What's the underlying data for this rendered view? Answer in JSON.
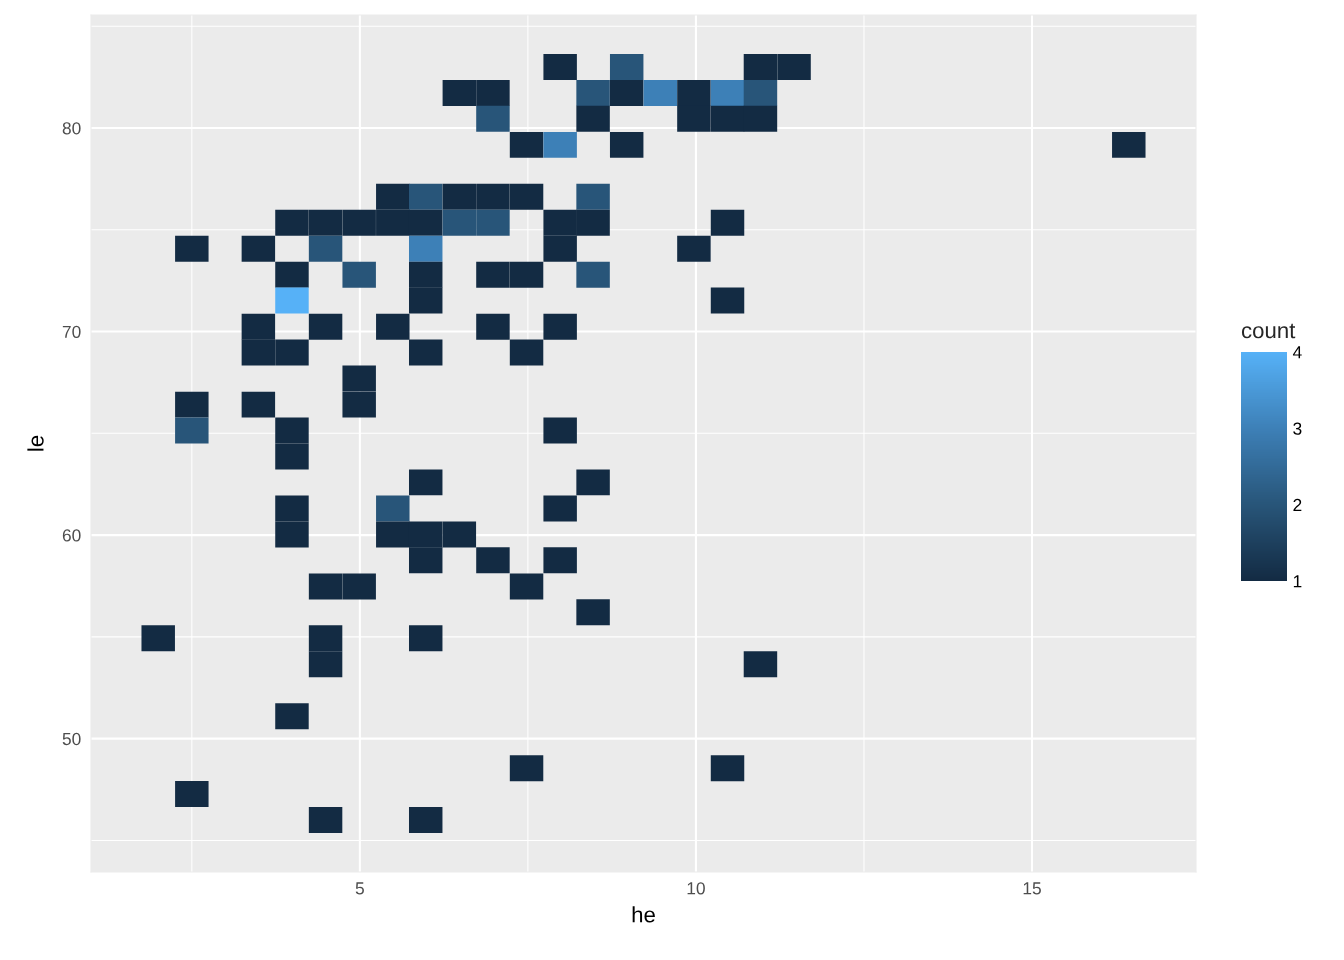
{
  "chart_data": {
    "type": "scatter",
    "xlabel": "he",
    "ylabel": "le",
    "clabel": "count",
    "marker": "square",
    "grid": true,
    "xlim": [
      1.0,
      17.44
    ],
    "ylim": [
      43.45,
      85.55
    ],
    "xticks": [
      5,
      10,
      15
    ],
    "yticks": [
      50,
      60,
      70,
      80
    ],
    "clim": [
      1,
      4
    ],
    "cticks": [
      1,
      2,
      3,
      4
    ],
    "x": [
      7.98,
      8.97,
      10.96,
      11.46,
      6.48,
      6.98,
      8.47,
      8.97,
      9.47,
      9.97,
      10.47,
      10.96,
      6.98,
      8.47,
      9.97,
      10.47,
      10.96,
      7.48,
      7.98,
      8.97,
      16.44,
      5.49,
      5.98,
      6.48,
      6.98,
      7.48,
      8.47,
      3.99,
      4.49,
      4.99,
      5.49,
      5.98,
      6.48,
      6.98,
      7.98,
      8.47,
      10.47,
      2.5,
      3.49,
      4.49,
      5.98,
      7.98,
      9.97,
      3.99,
      4.99,
      5.98,
      6.98,
      7.48,
      8.47,
      3.99,
      5.98,
      10.47,
      3.49,
      4.49,
      5.49,
      6.98,
      7.98,
      3.49,
      3.99,
      5.98,
      7.48,
      4.99,
      2.5,
      3.49,
      4.99,
      2.5,
      3.99,
      7.98,
      3.99,
      5.98,
      8.47,
      3.99,
      5.49,
      7.98,
      3.99,
      5.49,
      5.98,
      6.48,
      5.98,
      6.98,
      7.98,
      4.49,
      4.99,
      7.48,
      8.47,
      2.0,
      4.49,
      5.98,
      4.49,
      10.96,
      3.99,
      7.48,
      10.47,
      2.5,
      4.49,
      5.98
    ],
    "values": [
      83.0,
      83.0,
      83.0,
      83.0,
      81.72,
      81.72,
      81.72,
      81.72,
      81.72,
      81.72,
      81.72,
      81.72,
      80.45,
      80.45,
      80.45,
      80.45,
      80.45,
      79.17,
      79.17,
      79.17,
      79.17,
      76.62,
      76.62,
      76.62,
      76.62,
      76.62,
      76.62,
      75.34,
      75.34,
      75.34,
      75.34,
      75.34,
      75.34,
      75.34,
      75.34,
      75.34,
      75.34,
      74.07,
      74.07,
      74.07,
      74.07,
      74.07,
      74.07,
      72.79,
      72.79,
      72.79,
      72.79,
      72.79,
      72.79,
      71.52,
      71.52,
      71.52,
      70.24,
      70.24,
      70.24,
      70.24,
      70.24,
      68.97,
      68.97,
      68.97,
      68.97,
      67.69,
      66.41,
      66.41,
      66.41,
      65.14,
      65.14,
      65.14,
      63.86,
      62.59,
      62.59,
      61.31,
      61.31,
      61.31,
      60.03,
      60.03,
      60.03,
      60.03,
      58.76,
      58.76,
      58.76,
      57.48,
      57.48,
      57.48,
      56.21,
      54.93,
      54.93,
      54.93,
      53.66,
      53.66,
      51.1,
      48.55,
      48.55,
      47.28,
      46.0,
      46.0
    ],
    "cvalues": [
      1,
      2,
      1,
      1,
      1,
      1,
      2,
      1,
      3,
      1,
      3,
      2,
      2,
      1,
      1,
      1,
      1,
      1,
      3,
      1,
      1,
      1,
      2,
      1,
      1,
      1,
      2,
      1,
      1,
      1,
      1,
      1,
      2,
      2,
      1,
      1,
      1,
      1,
      1,
      2,
      3,
      1,
      1,
      1,
      2,
      1,
      1,
      1,
      2,
      4,
      1,
      1,
      1,
      1,
      1,
      1,
      1,
      1,
      1,
      1,
      1,
      1,
      1,
      1,
      1,
      2,
      1,
      1,
      1,
      1,
      1,
      1,
      2,
      1,
      1,
      1,
      1,
      1,
      1,
      1,
      1,
      1,
      1,
      1,
      1,
      1,
      1,
      1,
      1,
      1,
      1,
      1,
      1,
      1,
      1,
      1
    ]
  }
}
